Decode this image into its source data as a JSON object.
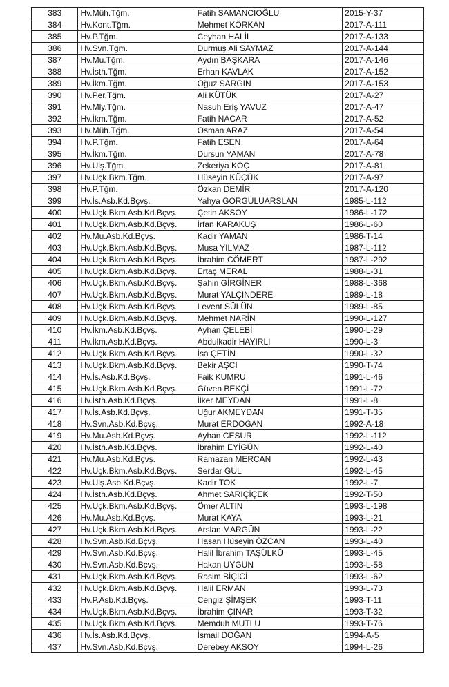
{
  "rows": [
    [
      "383",
      "Hv.Müh.Tğm.",
      "Fatih SAMANCIOĞLU",
      "2015-Y-37"
    ],
    [
      "384",
      "Hv.Kont.Tğm.",
      "Mehmet KÖRKAN",
      "2017-A-111"
    ],
    [
      "385",
      "Hv.P.Tğm.",
      "Ceyhan HALİL",
      "2017-A-133"
    ],
    [
      "386",
      "Hv.Svn.Tğm.",
      "Durmuş Ali SAYMAZ",
      "2017-A-144"
    ],
    [
      "387",
      "Hv.Mu.Tğm.",
      "Aydın BAŞKARA",
      "2017-A-146"
    ],
    [
      "388",
      "Hv.İsth.Tğm.",
      "Erhan KAVLAK",
      "2017-A-152"
    ],
    [
      "389",
      "Hv.İkm.Tğm.",
      "Oğuz SARGIN",
      "2017-A-153"
    ],
    [
      "390",
      "Hv.Per.Tğm.",
      "Ali KÜTÜK",
      "2017-A-27"
    ],
    [
      "391",
      "Hv.Mly.Tğm.",
      "Nasuh Eriş YAVUZ",
      "2017-A-47"
    ],
    [
      "392",
      "Hv.İkm.Tğm.",
      "Fatih NACAR",
      "2017-A-52"
    ],
    [
      "393",
      "Hv.Müh.Tğm.",
      "Osman ARAZ",
      "2017-A-54"
    ],
    [
      "394",
      "Hv.P.Tğm.",
      "Fatih ESEN",
      "2017-A-64"
    ],
    [
      "395",
      "Hv.İkm.Tğm.",
      "Dursun YAMAN",
      "2017-A-78"
    ],
    [
      "396",
      "Hv.Ulş.Tğm.",
      "Zekeriya KOÇ",
      "2017-A-81"
    ],
    [
      "397",
      "Hv.Uçk.Bkm.Tğm.",
      "Hüseyin KÜÇÜK",
      "2017-A-97"
    ],
    [
      "398",
      "Hv.P.Tğm.",
      "Özkan DEMİR",
      "2017-A-120"
    ],
    [
      "399",
      "Hv.İs.Asb.Kd.Bçvş.",
      "Yahya GÖRGÜLÜARSLAN",
      "1985-L-112"
    ],
    [
      "400",
      "Hv.Uçk.Bkm.Asb.Kd.Bçvş.",
      "Çetin AKSOY",
      "1986-L-172"
    ],
    [
      "401",
      "Hv.Uçk.Bkm.Asb.Kd.Bçvş.",
      "İrfan KARAKUŞ",
      "1986-L-60"
    ],
    [
      "402",
      "Hv.Mu.Asb.Kd.Bçvş.",
      "Kadir YAMAN",
      "1986-T-14"
    ],
    [
      "403",
      "Hv.Uçk.Bkm.Asb.Kd.Bçvş.",
      "Musa YILMAZ",
      "1987-L-112"
    ],
    [
      "404",
      "Hv.Uçk.Bkm.Asb.Kd.Bçvş.",
      "İbrahim CÖMERT",
      "1987-L-292"
    ],
    [
      "405",
      "Hv.Uçk.Bkm.Asb.Kd.Bçvş.",
      "Ertaç MERAL",
      "1988-L-31"
    ],
    [
      "406",
      "Hv.Uçk.Bkm.Asb.Kd.Bçvş.",
      "Şahin GİRGİNER",
      "1988-L-368"
    ],
    [
      "407",
      "Hv.Uçk.Bkm.Asb.Kd.Bçvş.",
      "Murat YALÇINDERE",
      "1989-L-18"
    ],
    [
      "408",
      "Hv.Uçk.Bkm.Asb.Kd.Bçvş.",
      "Levent SÜLÜN",
      "1989-L-85"
    ],
    [
      "409",
      "Hv.Uçk.Bkm.Asb.Kd.Bçvş.",
      "Mehmet NARİN",
      "1990-L-127"
    ],
    [
      "410",
      "Hv.İkm.Asb.Kd.Bçvş.",
      "Ayhan ÇELEBİ",
      "1990-L-29"
    ],
    [
      "411",
      "Hv.İkm.Asb.Kd.Bçvş.",
      "Abdulkadir HAYIRLI",
      "1990-L-3"
    ],
    [
      "412",
      "Hv.Uçk.Bkm.Asb.Kd.Bçvş.",
      "İsa ÇETİN",
      "1990-L-32"
    ],
    [
      "413",
      "Hv.Uçk.Bkm.Asb.Kd.Bçvş.",
      "Bekir AŞCI",
      "1990-T-74"
    ],
    [
      "414",
      "Hv.İs.Asb.Kd.Bçvş.",
      "Faik KUMRU",
      "1991-L-46"
    ],
    [
      "415",
      "Hv.Uçk.Bkm.Asb.Kd.Bçvş.",
      "Güven BEKÇİ",
      "1991-L-72"
    ],
    [
      "416",
      "Hv.İsth.Asb.Kd.Bçvş.",
      "İlker MEYDAN",
      "1991-L-8"
    ],
    [
      "417",
      "Hv.İs.Asb.Kd.Bçvş.",
      "Uğur AKMEYDAN",
      "1991-T-35"
    ],
    [
      "418",
      "Hv.Svn.Asb.Kd.Bçvş.",
      "Murat ERDOĞAN",
      "1992-A-18"
    ],
    [
      "419",
      "Hv.Mu.Asb.Kd.Bçvş.",
      "Ayhan CESUR",
      "1992-L-112"
    ],
    [
      "420",
      "Hv.İsth.Asb.Kd.Bçvş.",
      "İbrahim EYİGÜN",
      "1992-L-40"
    ],
    [
      "421",
      "Hv.Mu.Asb.Kd.Bçvş.",
      "Ramazan MERCAN",
      "1992-L-43"
    ],
    [
      "422",
      "Hv.Uçk.Bkm.Asb.Kd.Bçvş.",
      "Serdar GÜL",
      "1992-L-45"
    ],
    [
      "423",
      "Hv.Ulş.Asb.Kd.Bçvş.",
      "Kadir TOK",
      "1992-L-7"
    ],
    [
      "424",
      "Hv.İsth.Asb.Kd.Bçvş.",
      "Ahmet SARIÇİÇEK",
      "1992-T-50"
    ],
    [
      "425",
      "Hv.Uçk.Bkm.Asb.Kd.Bçvş.",
      "Ömer ALTIN",
      "1993-L-198"
    ],
    [
      "426",
      "Hv.Mu.Asb.Kd.Bçvş.",
      "Murat KAYA",
      "1993-L-21"
    ],
    [
      "427",
      "Hv.Uçk.Bkm.Asb.Kd.Bçvş.",
      "Arslan MARGÜN",
      "1993-L-22"
    ],
    [
      "428",
      "Hv.Svn.Asb.Kd.Bçvş.",
      "Hasan Hüseyin ÖZCAN",
      "1993-L-40"
    ],
    [
      "429",
      "Hv.Svn.Asb.Kd.Bçvş.",
      "Halil İbrahim TAŞÜLKÜ",
      "1993-L-45"
    ],
    [
      "430",
      "Hv.Svn.Asb.Kd.Bçvş.",
      "Hakan UYGUN",
      "1993-L-58"
    ],
    [
      "431",
      "Hv.Uçk.Bkm.Asb.Kd.Bçvş.",
      "Rasim BİÇİCİ",
      "1993-L-62"
    ],
    [
      "432",
      "Hv.Uçk.Bkm.Asb.Kd.Bçvş.",
      "Halil ERMAN",
      "1993-L-73"
    ],
    [
      "433",
      "Hv.P.Asb.Kd.Bçvş.",
      "Cengiz ŞİMŞEK",
      "1993-T-11"
    ],
    [
      "434",
      "Hv.Uçk.Bkm.Asb.Kd.Bçvş.",
      "İbrahim ÇINAR",
      "1993-T-32"
    ],
    [
      "435",
      "Hv.Uçk.Bkm.Asb.Kd.Bçvş.",
      "Memduh MUTLU",
      "1993-T-76"
    ],
    [
      "436",
      "Hv.İs.Asb.Kd.Bçvş.",
      "İsmail DOĞAN",
      "1994-A-5"
    ],
    [
      "437",
      "Hv.Svn.Asb.Kd.Bçvş.",
      "Derebey AKSOY",
      "1994-L-26"
    ]
  ]
}
